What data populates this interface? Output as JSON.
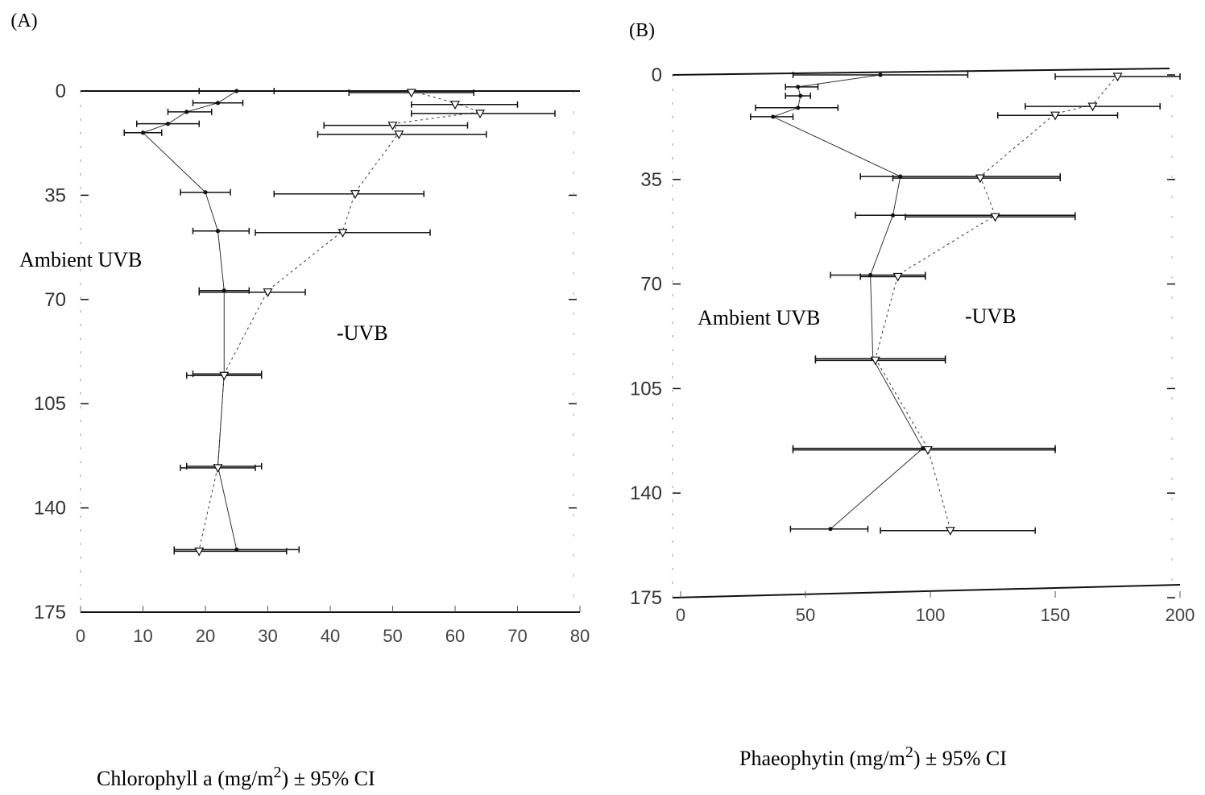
{
  "chart_data": [
    {
      "type": "scatter",
      "panel_label": "(A)",
      "xlabel_main": "Chlorophyll a (mg/m",
      "xlabel_sup": "2",
      "xlabel_tail": ") ± 95% CI",
      "xlim": [
        0,
        80
      ],
      "ylim": [
        0,
        175
      ],
      "y_inverted": true,
      "x_ticks": [
        "0",
        "10",
        "20",
        "30",
        "40",
        "50",
        "60",
        "70",
        "80"
      ],
      "y_ticks": [
        "0",
        "35",
        "70",
        "105",
        "140",
        "175"
      ],
      "annotations": [
        "Ambient UVB",
        "-UVB"
      ],
      "series": [
        {
          "name": "Ambient UVB",
          "marker": "dot",
          "line": "solid",
          "points": [
            {
              "y": 0,
              "x": 25,
              "lo": 19,
              "hi": 31
            },
            {
              "y": 4,
              "x": 22,
              "lo": 18,
              "hi": 26
            },
            {
              "y": 7,
              "x": 17,
              "lo": 14,
              "hi": 21
            },
            {
              "y": 11,
              "x": 14,
              "lo": 9,
              "hi": 19
            },
            {
              "y": 14,
              "x": 10,
              "lo": 7,
              "hi": 13
            },
            {
              "y": 34,
              "x": 20,
              "lo": 16,
              "hi": 24
            },
            {
              "y": 47,
              "x": 22,
              "lo": 18,
              "hi": 27
            },
            {
              "y": 67,
              "x": 23,
              "lo": 19,
              "hi": 27
            },
            {
              "y": 95,
              "x": 23,
              "lo": 18,
              "hi": 29
            },
            {
              "y": 126,
              "x": 22,
              "lo": 17,
              "hi": 29
            },
            {
              "y": 154,
              "x": 25,
              "lo": 15,
              "hi": 35
            }
          ]
        },
        {
          "name": "-UVB",
          "marker": "triangle",
          "line": "dotted",
          "points": [
            {
              "y": 0,
              "x": 53,
              "lo": 43,
              "hi": 63
            },
            {
              "y": 4,
              "x": 60,
              "lo": 53,
              "hi": 70
            },
            {
              "y": 7,
              "x": 64,
              "lo": 53,
              "hi": 76
            },
            {
              "y": 11,
              "x": 50,
              "lo": 39,
              "hi": 62
            },
            {
              "y": 14,
              "x": 51,
              "lo": 38,
              "hi": 65
            },
            {
              "y": 34,
              "x": 44,
              "lo": 31,
              "hi": 55
            },
            {
              "y": 47,
              "x": 42,
              "lo": 28,
              "hi": 56
            },
            {
              "y": 67,
              "x": 30,
              "lo": 19,
              "hi": 36
            },
            {
              "y": 95,
              "x": 23,
              "lo": 17,
              "hi": 29
            },
            {
              "y": 126,
              "x": 22,
              "lo": 16,
              "hi": 28
            },
            {
              "y": 154,
              "x": 19,
              "lo": 15,
              "hi": 33
            }
          ]
        }
      ]
    },
    {
      "type": "scatter",
      "panel_label": "(B)",
      "xlabel_main": "Phaeophytin (mg/m",
      "xlabel_sup": "2",
      "xlabel_tail": ") ± 95% CI",
      "xlim": [
        0,
        200
      ],
      "ylim": [
        0,
        175
      ],
      "y_inverted": true,
      "x_ticks": [
        "0",
        "50",
        "100",
        "150",
        "200"
      ],
      "y_ticks": [
        "0",
        "35",
        "70",
        "105",
        "140",
        "175"
      ],
      "annotations": [
        "Ambient UVB",
        "-UVB"
      ],
      "series": [
        {
          "name": "Ambient UVB",
          "marker": "dot",
          "line": "solid",
          "points": [
            {
              "y": 0,
              "x": 80,
              "lo": 45,
              "hi": 115
            },
            {
              "y": 4,
              "x": 47,
              "lo": 42,
              "hi": 55
            },
            {
              "y": 7,
              "x": 48,
              "lo": 42,
              "hi": 52
            },
            {
              "y": 11,
              "x": 47,
              "lo": 30,
              "hi": 63
            },
            {
              "y": 14,
              "x": 37,
              "lo": 28,
              "hi": 45
            },
            {
              "y": 34,
              "x": 88,
              "lo": 72,
              "hi": 152
            },
            {
              "y": 47,
              "x": 85,
              "lo": 70,
              "hi": 158
            },
            {
              "y": 67,
              "x": 76,
              "lo": 60,
              "hi": 98
            },
            {
              "y": 95,
              "x": 77,
              "lo": 54,
              "hi": 106
            },
            {
              "y": 125,
              "x": 97,
              "lo": 45,
              "hi": 150
            },
            {
              "y": 152,
              "x": 60,
              "lo": 44,
              "hi": 75
            }
          ]
        },
        {
          "name": "-UVB",
          "marker": "triangle",
          "line": "dotted",
          "points": [
            {
              "y": 0,
              "x": 175,
              "lo": 150,
              "hi": 200
            },
            {
              "y": 10,
              "x": 165,
              "lo": 138,
              "hi": 192
            },
            {
              "y": 13,
              "x": 150,
              "lo": 127,
              "hi": 175
            },
            {
              "y": 34,
              "x": 120,
              "lo": 85,
              "hi": 152
            },
            {
              "y": 47,
              "x": 126,
              "lo": 90,
              "hi": 158
            },
            {
              "y": 67,
              "x": 87,
              "lo": 72,
              "hi": 98
            },
            {
              "y": 95,
              "x": 78,
              "lo": 54,
              "hi": 106
            },
            {
              "y": 125,
              "x": 99,
              "lo": 45,
              "hi": 150
            },
            {
              "y": 152,
              "x": 108,
              "lo": 80,
              "hi": 142
            }
          ]
        }
      ]
    }
  ]
}
